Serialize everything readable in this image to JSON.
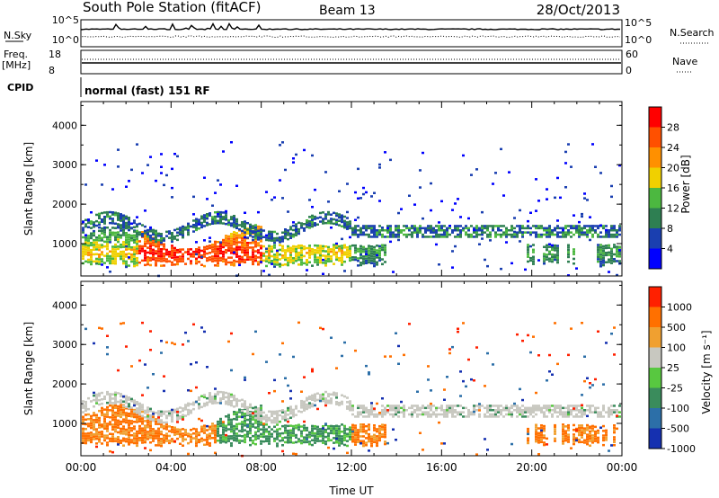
{
  "header": {
    "station": "South Pole Station (fitACF)",
    "beam": "Beam 13",
    "date": "28/Oct/2013"
  },
  "top_panels": {
    "nsky_label": "N.Sky",
    "nsearch_label": "N.Search",
    "noise_ticks": [
      "10^5",
      "10^0"
    ],
    "freq_label_1": "Freq.",
    "freq_label_2": "[MHz]",
    "freq_ticks": [
      "18",
      "8"
    ],
    "nave_label": "Nave",
    "nave_ticks": [
      "60",
      "0"
    ],
    "cpid_label": "CPID",
    "cpid_text": "normal (fast) 151 RF"
  },
  "chart_data": [
    {
      "type": "heatmap",
      "name": "power",
      "ylabel": "Slant Range [km]",
      "ylim": [
        180,
        4600
      ],
      "yticks": [
        "4000",
        "3000",
        "2000",
        "1000"
      ],
      "colorbar_label": "Power [dB]",
      "colorbar_ticks": [
        "28",
        "24",
        "20",
        "16",
        "12",
        "8",
        "4"
      ],
      "colors": [
        "#0000ff",
        "#1a3fb0",
        "#2e7f52",
        "#4cb840",
        "#f0d000",
        "#ff9000",
        "#ff5000",
        "#ff0000"
      ]
    },
    {
      "type": "heatmap",
      "name": "velocity",
      "ylabel": "Slant Range [km]",
      "ylim": [
        180,
        4600
      ],
      "yticks": [
        "4000",
        "3000",
        "2000",
        "1000"
      ],
      "colorbar_label": "Velocity [m s⁻¹]",
      "colorbar_ticks": [
        "1000",
        "500",
        "100",
        "25",
        "-25",
        "-100",
        "-500",
        "-1000"
      ],
      "colors": [
        "#1530b0",
        "#2c6fa8",
        "#3a8c5c",
        "#58c840",
        "#c8c8c0",
        "#f0a030",
        "#ff7000",
        "#ff2000"
      ],
      "xlabel": "Time UT",
      "xticks": [
        "00:00",
        "04:00",
        "08:00",
        "12:00",
        "16:00",
        "20:00",
        "00:00"
      ],
      "xlim_hours": [
        0,
        24
      ]
    }
  ]
}
